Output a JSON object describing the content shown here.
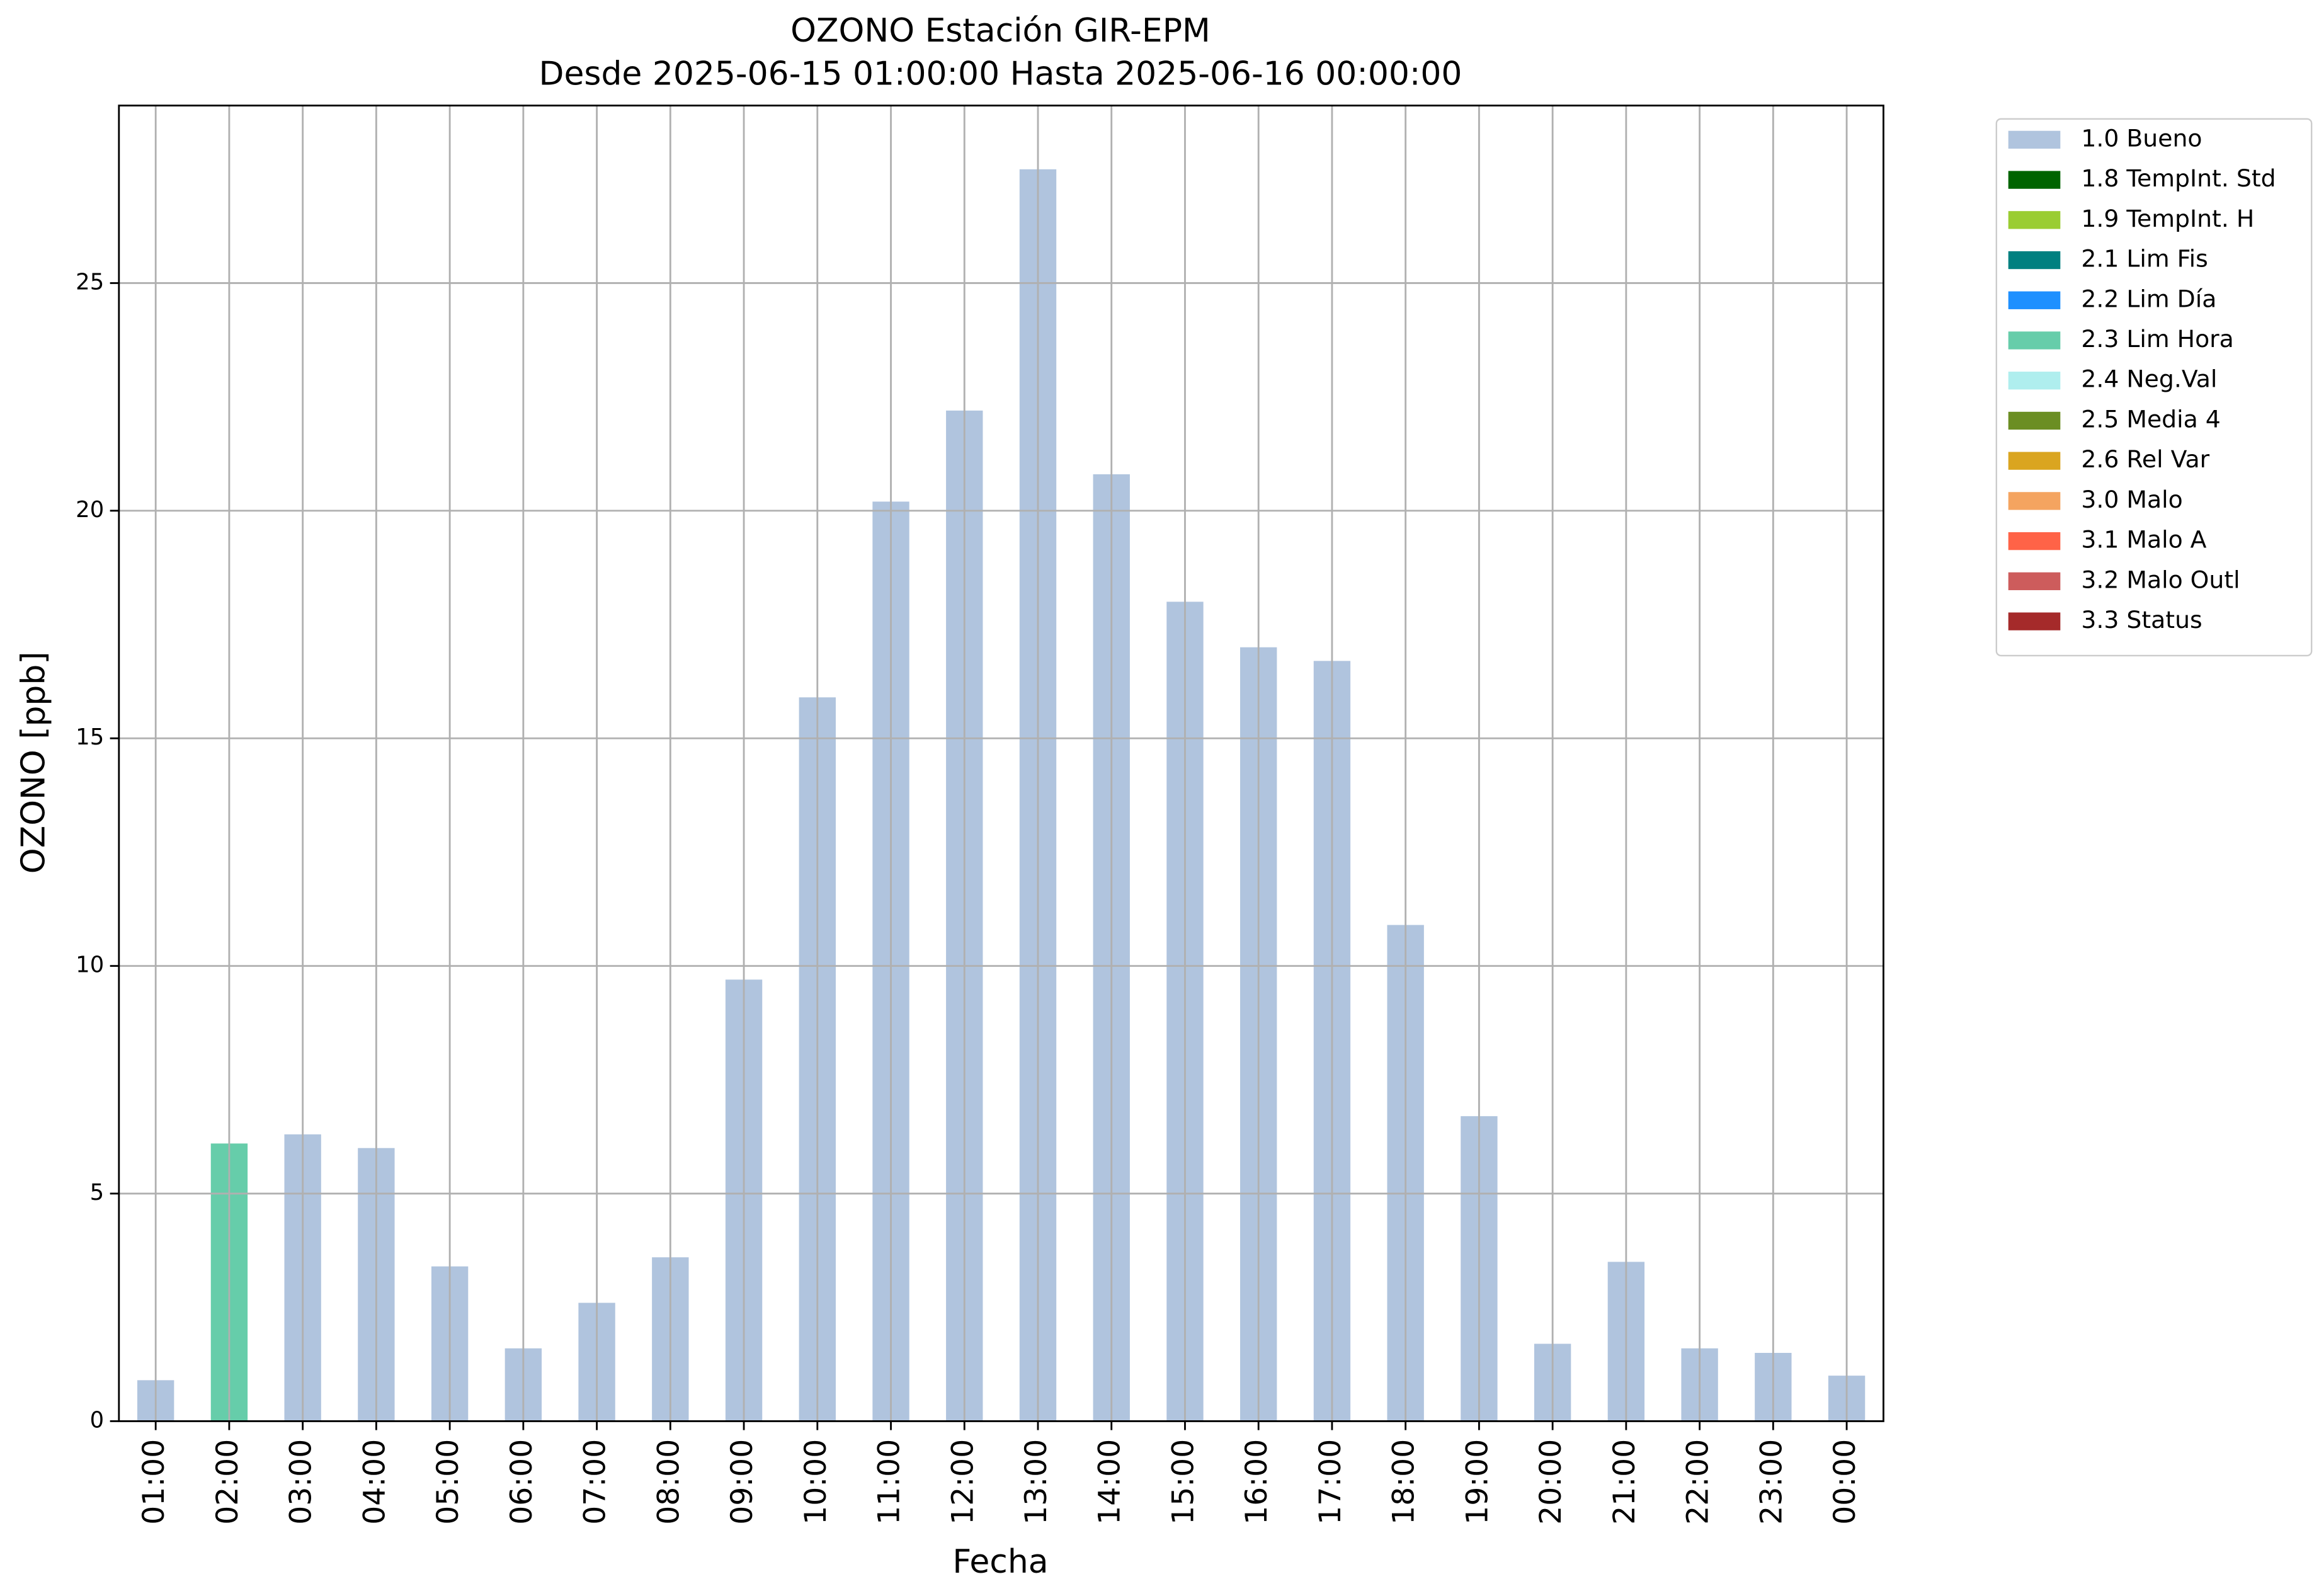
{
  "chart_data": {
    "type": "bar",
    "title": "OZONO Estación GIR-EPM",
    "subtitle": "Desde 2025-06-15 01:00:00 Hasta 2025-06-16 00:00:00",
    "x_label": "Fecha",
    "y_label": "OZONO [ppb]",
    "categories": [
      "01:00",
      "02:00",
      "03:00",
      "04:00",
      "05:00",
      "06:00",
      "07:00",
      "08:00",
      "09:00",
      "10:00",
      "11:00",
      "12:00",
      "13:00",
      "14:00",
      "15:00",
      "16:00",
      "17:00",
      "18:00",
      "19:00",
      "20:00",
      "21:00",
      "22:00",
      "23:00",
      "00:00"
    ],
    "series": [
      {
        "name": "1.0 Bueno",
        "color": "#b0c4de",
        "values": [
          0.9,
          null,
          6.3,
          6.0,
          3.4,
          1.6,
          2.6,
          3.6,
          9.7,
          15.9,
          20.2,
          22.2,
          27.5,
          20.8,
          18.0,
          17.0,
          16.7,
          10.9,
          6.7,
          1.7,
          3.5,
          1.6,
          1.5,
          1.0
        ]
      },
      {
        "name": "1.8 TempInt. Std",
        "color": "#006400",
        "values": [
          null,
          null,
          null,
          null,
          null,
          null,
          null,
          null,
          null,
          null,
          null,
          null,
          null,
          null,
          null,
          null,
          null,
          null,
          null,
          null,
          null,
          null,
          null,
          null
        ]
      },
      {
        "name": "1.9 TempInt. H",
        "color": "#9acd32",
        "values": [
          null,
          null,
          null,
          null,
          null,
          null,
          null,
          null,
          null,
          null,
          null,
          null,
          null,
          null,
          null,
          null,
          null,
          null,
          null,
          null,
          null,
          null,
          null,
          null
        ]
      },
      {
        "name": "2.1 Lim Fis",
        "color": "#008080",
        "values": [
          null,
          null,
          null,
          null,
          null,
          null,
          null,
          null,
          null,
          null,
          null,
          null,
          null,
          null,
          null,
          null,
          null,
          null,
          null,
          null,
          null,
          null,
          null,
          null
        ]
      },
      {
        "name": "2.2 Lim Día",
        "color": "#1e90ff",
        "values": [
          null,
          null,
          null,
          null,
          null,
          null,
          null,
          null,
          null,
          null,
          null,
          null,
          null,
          null,
          null,
          null,
          null,
          null,
          null,
          null,
          null,
          null,
          null,
          null
        ]
      },
      {
        "name": "2.3 Lim Hora",
        "color": "#66cdaa",
        "values": [
          null,
          6.1,
          null,
          null,
          null,
          null,
          null,
          null,
          null,
          null,
          null,
          null,
          null,
          null,
          null,
          null,
          null,
          null,
          null,
          null,
          null,
          null,
          null,
          null
        ]
      },
      {
        "name": "2.4 Neg.Val",
        "color": "#afeeee",
        "values": [
          null,
          null,
          null,
          null,
          null,
          null,
          null,
          null,
          null,
          null,
          null,
          null,
          null,
          null,
          null,
          null,
          null,
          null,
          null,
          null,
          null,
          null,
          null,
          null
        ]
      },
      {
        "name": "2.5 Media 4",
        "color": "#6b8e23",
        "values": [
          null,
          null,
          null,
          null,
          null,
          null,
          null,
          null,
          null,
          null,
          null,
          null,
          null,
          null,
          null,
          null,
          null,
          null,
          null,
          null,
          null,
          null,
          null,
          null
        ]
      },
      {
        "name": "2.6 Rel Var",
        "color": "#daa520",
        "values": [
          null,
          null,
          null,
          null,
          null,
          null,
          null,
          null,
          null,
          null,
          null,
          null,
          null,
          null,
          null,
          null,
          null,
          null,
          null,
          null,
          null,
          null,
          null,
          null
        ]
      },
      {
        "name": "3.0 Malo",
        "color": "#f4a460",
        "values": [
          null,
          null,
          null,
          null,
          null,
          null,
          null,
          null,
          null,
          null,
          null,
          null,
          null,
          null,
          null,
          null,
          null,
          null,
          null,
          null,
          null,
          null,
          null,
          null
        ]
      },
      {
        "name": "3.1 Malo A",
        "color": "#ff6347",
        "values": [
          null,
          null,
          null,
          null,
          null,
          null,
          null,
          null,
          null,
          null,
          null,
          null,
          null,
          null,
          null,
          null,
          null,
          null,
          null,
          null,
          null,
          null,
          null,
          null
        ]
      },
      {
        "name": "3.2 Malo Outl",
        "color": "#cd5c5c",
        "values": [
          null,
          null,
          null,
          null,
          null,
          null,
          null,
          null,
          null,
          null,
          null,
          null,
          null,
          null,
          null,
          null,
          null,
          null,
          null,
          null,
          null,
          null,
          null,
          null
        ]
      },
      {
        "name": "3.3 Status",
        "color": "#a52a2a",
        "values": [
          null,
          null,
          null,
          null,
          null,
          null,
          null,
          null,
          null,
          null,
          null,
          null,
          null,
          null,
          null,
          null,
          null,
          null,
          null,
          null,
          null,
          null,
          null,
          null
        ]
      }
    ],
    "ylim": [
      0,
      28.9
    ],
    "yticks": [
      0,
      5,
      10,
      15,
      20,
      25
    ],
    "grid": true,
    "legend": "outside upper right"
  }
}
